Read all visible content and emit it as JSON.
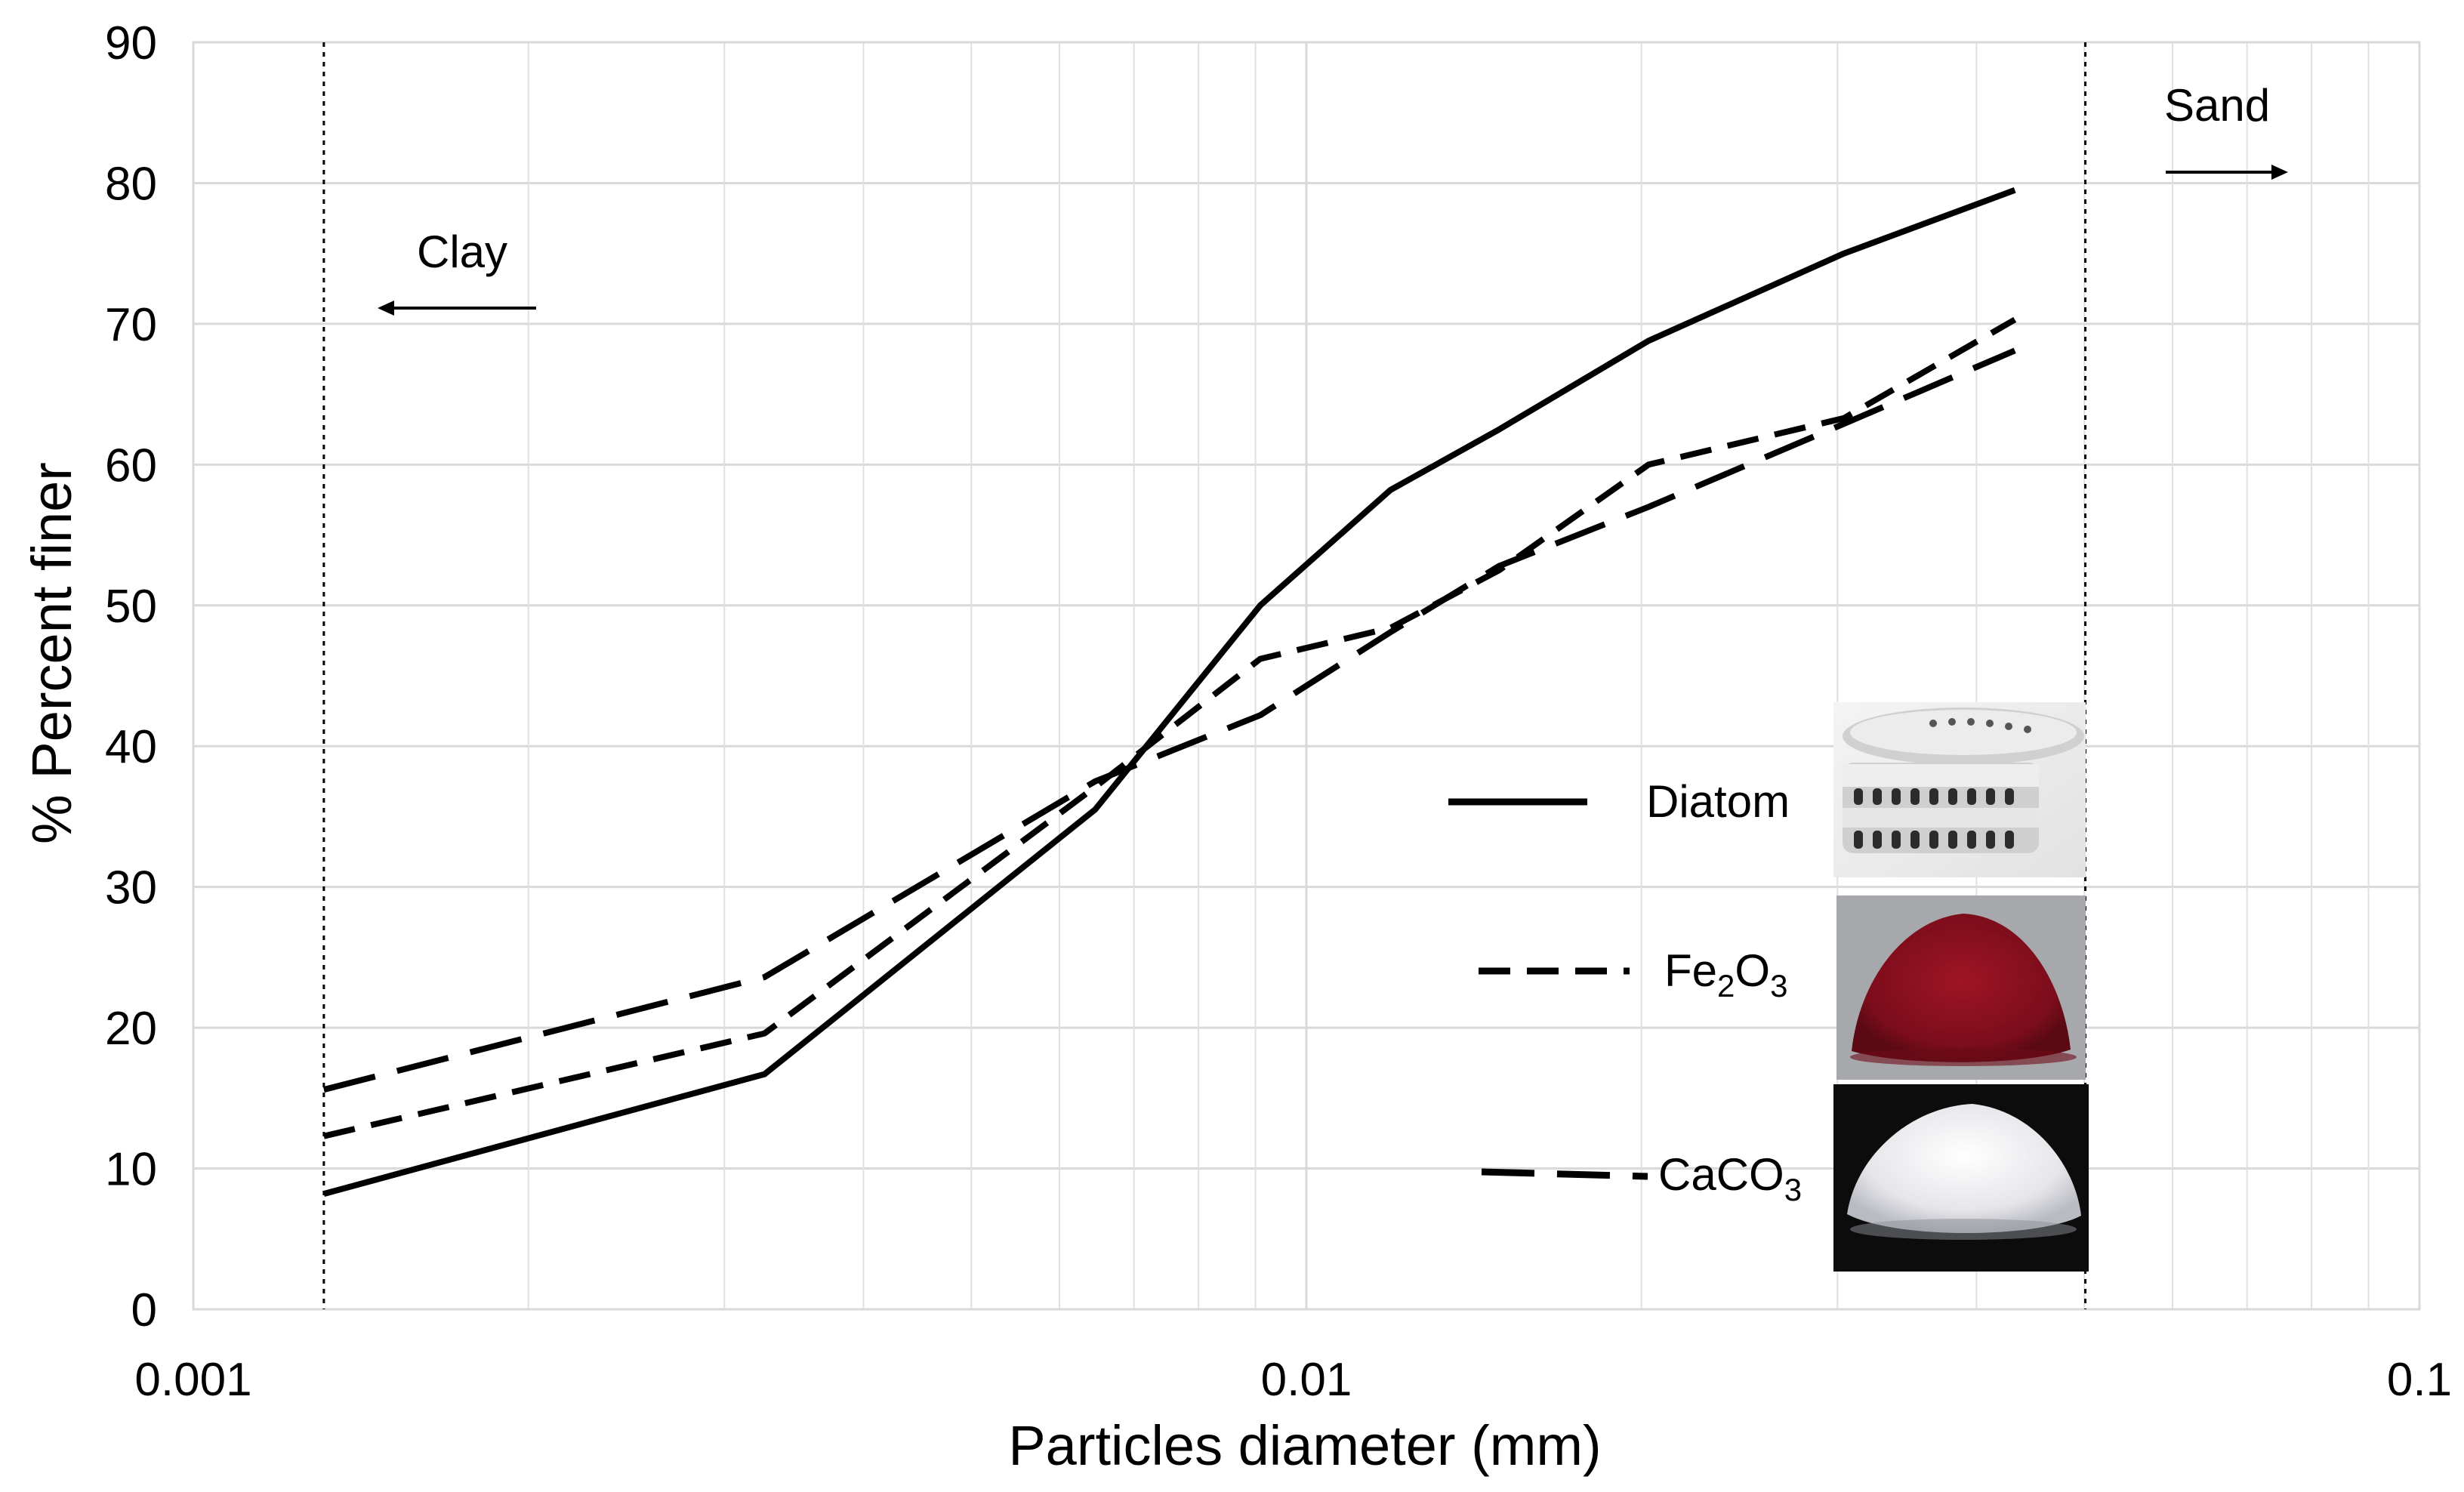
{
  "chart_data": {
    "type": "line",
    "xscale": "log",
    "xlim": [
      0.001,
      0.1
    ],
    "ylim": [
      0,
      90
    ],
    "grid": true,
    "xlabel": "Particles diameter (mm)",
    "ylabel": "% Percent finer",
    "x_ticks": [
      {
        "value": 0.001,
        "label": "0.001"
      },
      {
        "value": 0.01,
        "label": "0.01"
      },
      {
        "value": 0.1,
        "label": "0.1"
      }
    ],
    "y_ticks": [
      {
        "value": 0,
        "label": "0"
      },
      {
        "value": 10,
        "label": "10"
      },
      {
        "value": 20,
        "label": "20"
      },
      {
        "value": 30,
        "label": "30"
      },
      {
        "value": 40,
        "label": "40"
      },
      {
        "value": 50,
        "label": "50"
      },
      {
        "value": 60,
        "label": "60"
      },
      {
        "value": 70,
        "label": "70"
      },
      {
        "value": 80,
        "label": "80"
      },
      {
        "value": 90,
        "label": "90"
      }
    ],
    "series": [
      {
        "name": "Diatom",
        "style": "solid",
        "x": [
          0.00131,
          0.00326,
          0.00646,
          0.00909,
          0.0119,
          0.0149,
          0.0203,
          0.0304,
          0.0433
        ],
        "y": [
          8.2,
          16.7,
          35.5,
          50.0,
          58.2,
          62.5,
          68.8,
          75.0,
          79.5
        ]
      },
      {
        "name": "Fe2O3",
        "label_main": "Fe",
        "label_sub1": "2",
        "label_mid": "O",
        "label_sub2": "3",
        "style": "short-dash",
        "x": [
          0.00131,
          0.00326,
          0.00646,
          0.00909,
          0.0119,
          0.0149,
          0.0203,
          0.0304,
          0.0433
        ],
        "y": [
          12.3,
          19.6,
          37.1,
          46.2,
          48.4,
          52.5,
          60.0,
          63.3,
          70.3
        ]
      },
      {
        "name": "CaCO3",
        "label_main": "CaCO",
        "label_sub": "3",
        "style": "long-dash",
        "x": [
          0.00131,
          0.00326,
          0.00646,
          0.00909,
          0.0119,
          0.0149,
          0.0203,
          0.0304,
          0.0433
        ],
        "y": [
          15.6,
          23.6,
          37.5,
          42.2,
          48.1,
          52.8,
          57.0,
          62.9,
          68.1
        ]
      }
    ],
    "annotations": {
      "clay": {
        "label": "Clay",
        "x": 0.00131
      },
      "sand": {
        "label": "Sand",
        "x": 0.0501
      }
    }
  }
}
